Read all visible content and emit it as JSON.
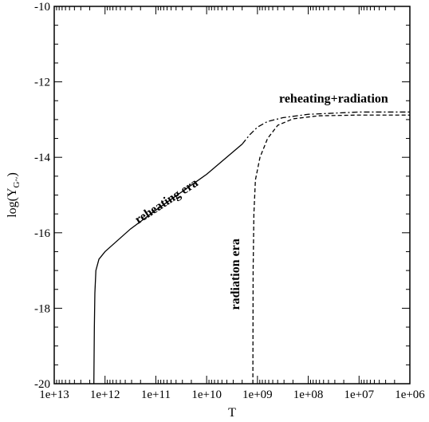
{
  "chart_data": {
    "type": "line",
    "title": "",
    "xlabel": "T",
    "ylabel": {
      "base": "log(Y",
      "sub": "G~",
      "close": ")"
    },
    "x_scale": "log",
    "x_reversed": true,
    "x_log10_range": [
      13,
      6
    ],
    "ylim": [
      -20,
      -10
    ],
    "x_tick_labels": [
      "1e+13",
      "1e+12",
      "1e+11",
      "1e+10",
      "1e+09",
      "1e+08",
      "1e+07",
      "1e+06"
    ],
    "y_tick_labels": [
      "-20",
      "-18",
      "-16",
      "-14",
      "-12",
      "-10"
    ],
    "y_ticks": [
      -20,
      -18,
      -16,
      -14,
      -12,
      -10
    ],
    "grid": false,
    "series": [
      {
        "name": "reheating era",
        "style": "solid",
        "points_log10T": [
          [
            12.22,
            -20.0
          ],
          [
            12.21,
            -18.5
          ],
          [
            12.2,
            -17.6
          ],
          [
            12.18,
            -17.0
          ],
          [
            12.12,
            -16.7
          ],
          [
            12.0,
            -16.5
          ],
          [
            11.5,
            -15.9
          ],
          [
            11.0,
            -15.4
          ],
          [
            10.0,
            -14.45
          ],
          [
            9.3,
            -13.65
          ]
        ]
      },
      {
        "name": "reheating+radiation",
        "style": "dashdot",
        "points_log10T": [
          [
            9.3,
            -13.65
          ],
          [
            9.15,
            -13.4
          ],
          [
            9.0,
            -13.2
          ],
          [
            8.8,
            -13.05
          ],
          [
            8.5,
            -12.95
          ],
          [
            8.0,
            -12.86
          ],
          [
            7.0,
            -12.8
          ],
          [
            6.0,
            -12.8
          ]
        ]
      },
      {
        "name": "radiation era",
        "style": "dashed",
        "points_log10T": [
          [
            9.09,
            -20.0
          ],
          [
            9.085,
            -17.0
          ],
          [
            9.07,
            -15.5
          ],
          [
            9.04,
            -14.6
          ],
          [
            8.95,
            -14.0
          ],
          [
            8.8,
            -13.5
          ],
          [
            8.6,
            -13.15
          ],
          [
            8.3,
            -12.98
          ],
          [
            7.8,
            -12.9
          ],
          [
            7.0,
            -12.88
          ],
          [
            6.0,
            -12.88
          ]
        ]
      }
    ],
    "annotations": [
      {
        "text": "reheating era",
        "log10T": 10.75,
        "y": -15.25,
        "rotate": -33
      },
      {
        "text": "reheating+radiation",
        "log10T": 7.5,
        "y": -12.55,
        "rotate": 0
      },
      {
        "text": "radiation era",
        "log10T": 9.36,
        "y": -17.1,
        "rotate": -90
      }
    ]
  }
}
